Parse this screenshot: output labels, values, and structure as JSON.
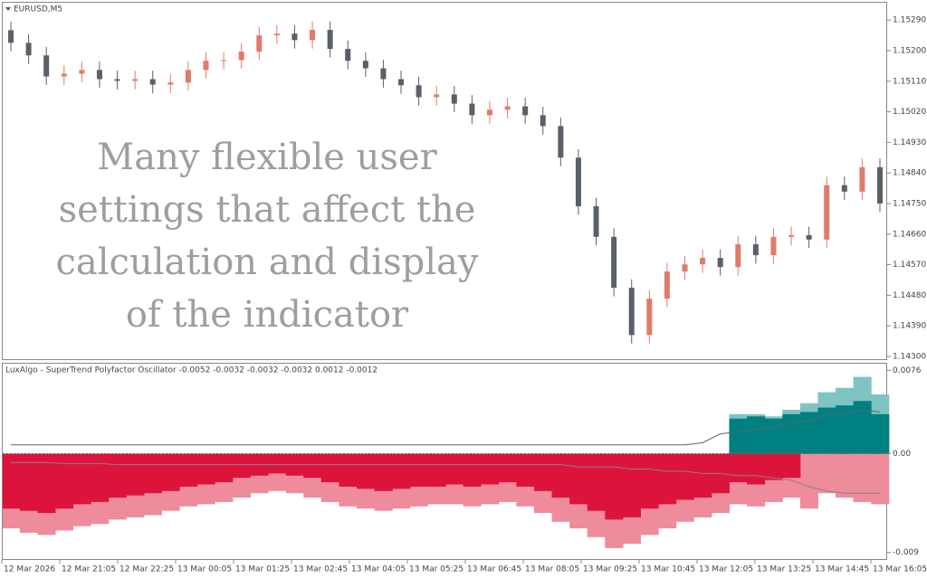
{
  "chart_data": [
    {
      "type": "candlestick",
      "title": "EURUSD,M5",
      "annotations": [
        "Many flexible user",
        "settings that affect the",
        "calculation and display",
        "of the indicator"
      ],
      "up_color": "#e07b6a",
      "down_color": "#5a6068",
      "ylim": [
        1.14292,
        1.15341
      ],
      "yticks": [
        {
          "value": 1.1529,
          "label": "1.15290"
        },
        {
          "value": 1.152,
          "label": "1.15200"
        },
        {
          "value": 1.1511,
          "label": "1.15110"
        },
        {
          "value": 1.1502,
          "label": "1.15020"
        },
        {
          "value": 1.1493,
          "label": "1.14930"
        },
        {
          "value": 1.1484,
          "label": "1.14840"
        },
        {
          "value": 1.1475,
          "label": "1.14750"
        },
        {
          "value": 1.1466,
          "label": "1.14660"
        },
        {
          "value": 1.1457,
          "label": "1.14570"
        },
        {
          "value": 1.1448,
          "label": "1.14480"
        },
        {
          "value": 1.1439,
          "label": "1.14390"
        },
        {
          "value": 1.143,
          "label": "1.14300"
        }
      ],
      "open": [
        1.1526,
        1.15223,
        1.15186,
        1.15124,
        1.15132,
        1.15143,
        1.15116,
        1.15111,
        1.15116,
        1.151,
        1.15106,
        1.15143,
        1.1517,
        1.15172,
        1.15197,
        1.15245,
        1.1525,
        1.15231,
        1.15261,
        1.15205,
        1.1517,
        1.15148,
        1.15116,
        1.15098,
        1.15063,
        1.15071,
        1.15044,
        1.1501,
        1.15026,
        1.15036,
        1.1501,
        1.14978,
        1.14885,
        1.14742,
        1.14652,
        1.14502,
        1.14363,
        1.1447,
        1.1455,
        1.14571,
        1.1459,
        1.14563,
        1.1463,
        1.14598,
        1.14652,
        1.14657,
        1.14644,
        1.14804,
        1.14785,
        1.14857
      ],
      "high": [
        1.15285,
        1.15248,
        1.15211,
        1.15157,
        1.15168,
        1.15168,
        1.15141,
        1.15141,
        1.15141,
        1.15131,
        1.15168,
        1.15195,
        1.15195,
        1.15222,
        1.1527,
        1.15275,
        1.15275,
        1.15286,
        1.15286,
        1.1523,
        1.15195,
        1.15173,
        1.15141,
        1.15123,
        1.15096,
        1.15096,
        1.15069,
        1.15051,
        1.15061,
        1.15061,
        1.15035,
        1.15003,
        1.1491,
        1.14767,
        1.14677,
        1.14527,
        1.14495,
        1.14575,
        1.14596,
        1.14615,
        1.14615,
        1.14655,
        1.14655,
        1.14677,
        1.14682,
        1.14682,
        1.14829,
        1.14829,
        1.14882,
        1.14882
      ],
      "low": [
        1.15198,
        1.15161,
        1.15099,
        1.15099,
        1.15107,
        1.15091,
        1.15086,
        1.15086,
        1.15075,
        1.15075,
        1.15081,
        1.15118,
        1.15145,
        1.15147,
        1.15172,
        1.1522,
        1.15206,
        1.15206,
        1.1518,
        1.15145,
        1.15123,
        1.15091,
        1.15073,
        1.15038,
        1.15038,
        1.15019,
        1.14985,
        1.14985,
        1.15001,
        1.14985,
        1.14953,
        1.1486,
        1.14717,
        1.14627,
        1.14477,
        1.14338,
        1.14338,
        1.14445,
        1.14525,
        1.14546,
        1.14538,
        1.14538,
        1.14573,
        1.14573,
        1.14627,
        1.14619,
        1.14619,
        1.1476,
        1.1476,
        1.14725
      ],
      "close": [
        1.15223,
        1.15186,
        1.15124,
        1.15132,
        1.15143,
        1.15116,
        1.15111,
        1.15116,
        1.151,
        1.15106,
        1.15143,
        1.1517,
        1.15172,
        1.15197,
        1.15245,
        1.1525,
        1.15231,
        1.15261,
        1.15205,
        1.1517,
        1.15148,
        1.15116,
        1.15098,
        1.15063,
        1.15071,
        1.15044,
        1.1501,
        1.15026,
        1.15036,
        1.1501,
        1.14978,
        1.14885,
        1.14742,
        1.14652,
        1.14502,
        1.14363,
        1.1447,
        1.1455,
        1.14571,
        1.1459,
        1.14563,
        1.1463,
        1.14598,
        1.14652,
        1.14657,
        1.14644,
        1.14804,
        1.14785,
        1.14857,
        1.1475
      ]
    },
    {
      "type": "bar",
      "title": "LuxAlgo - SuperTrend Polyfactor Oscillator -0.0052 -0.0032 -0.0032 -0.0032 0.0012 -0.0012",
      "ylim": [
        -0.0096,
        0.0082
      ],
      "yticks": [
        0.0076,
        {
          "value": 0,
          "label": "0.00"
        },
        -0.009
      ],
      "series": [
        {
          "color": "#ee8c9c",
          "values": [
            -0.0068,
            -0.0072,
            -0.0074,
            -0.007,
            -0.0066,
            -0.0064,
            -0.006,
            -0.0058,
            -0.0056,
            -0.0052,
            -0.0048,
            -0.0046,
            -0.0044,
            -0.004,
            -0.0036,
            -0.0034,
            -0.0036,
            -0.004,
            -0.0044,
            -0.0048,
            -0.005,
            -0.0052,
            -0.005,
            -0.0048,
            -0.0046,
            -0.0046,
            -0.0048,
            -0.0046,
            -0.0044,
            -0.0048,
            -0.0054,
            -0.0062,
            -0.0068,
            -0.0076,
            -0.0086,
            -0.0082,
            -0.0074,
            -0.0068,
            -0.0062,
            -0.0058,
            -0.0054,
            -0.0046,
            -0.0048,
            -0.0044,
            -0.004,
            -0.005,
            -0.0036,
            -0.004,
            -0.0044,
            -0.0046
          ]
        },
        {
          "color": "#dc143c",
          "values": [
            -0.005,
            -0.0052,
            -0.0054,
            -0.005,
            -0.0046,
            -0.0044,
            -0.004,
            -0.0038,
            -0.0036,
            -0.0034,
            -0.003,
            -0.0028,
            -0.0026,
            -0.0022,
            -0.002,
            -0.0018,
            -0.002,
            -0.0022,
            -0.0026,
            -0.003,
            -0.0032,
            -0.0034,
            -0.0032,
            -0.003,
            -0.003,
            -0.0028,
            -0.003,
            -0.0028,
            -0.0026,
            -0.003,
            -0.0034,
            -0.004,
            -0.0046,
            -0.0052,
            -0.006,
            -0.0058,
            -0.005,
            -0.0046,
            -0.0042,
            -0.004,
            -0.0036,
            -0.0026,
            -0.0028,
            -0.0024,
            -0.0022,
            null,
            null,
            null,
            null,
            null
          ]
        },
        {
          "color": "#7fc3c3",
          "values": [
            null,
            null,
            null,
            null,
            null,
            null,
            null,
            null,
            null,
            null,
            null,
            null,
            null,
            null,
            null,
            null,
            null,
            null,
            null,
            null,
            null,
            null,
            null,
            null,
            null,
            null,
            null,
            null,
            null,
            null,
            null,
            null,
            null,
            null,
            null,
            null,
            null,
            null,
            null,
            null,
            null,
            0.0036,
            0.0036,
            0.0034,
            0.004,
            0.0046,
            0.0056,
            0.006,
            0.007,
            0.0054
          ]
        },
        {
          "color": "#008080",
          "values": [
            null,
            null,
            null,
            null,
            null,
            null,
            null,
            null,
            null,
            null,
            null,
            null,
            null,
            null,
            null,
            null,
            null,
            null,
            null,
            null,
            null,
            null,
            null,
            null,
            null,
            null,
            null,
            null,
            null,
            null,
            null,
            null,
            null,
            null,
            null,
            null,
            null,
            null,
            null,
            null,
            null,
            0.0032,
            0.0034,
            0.0032,
            0.0036,
            0.0038,
            0.0042,
            0.0044,
            0.0048,
            0.0036
          ]
        }
      ],
      "lines": [
        {
          "color": "#5c6470",
          "values": [
            0.0008,
            0.0008,
            0.0008,
            0.0008,
            0.0008,
            0.0008,
            0.0008,
            0.0008,
            0.0008,
            0.0008,
            0.0008,
            0.0008,
            0.0008,
            0.0008,
            0.0008,
            0.0008,
            0.0008,
            0.0008,
            0.0008,
            0.0008,
            0.0008,
            0.0008,
            0.0008,
            0.0008,
            0.0008,
            0.0008,
            0.0008,
            0.0008,
            0.0008,
            0.0008,
            0.0008,
            0.0008,
            0.0008,
            0.0008,
            0.0008,
            0.0008,
            0.0008,
            0.0008,
            0.0008,
            0.001,
            0.0018,
            0.002,
            0.0022,
            0.0024,
            0.0028,
            0.003,
            0.0036,
            0.0036,
            0.004,
            0.0038
          ]
        },
        {
          "color": "#8a7f8a",
          "values": [
            -0.0008,
            -0.0008,
            -0.0008,
            -0.0009,
            -0.0009,
            -0.0009,
            -0.001,
            -0.001,
            -0.001,
            -0.001,
            -0.001,
            -0.001,
            -0.001,
            -0.001,
            -0.001,
            -0.001,
            -0.001,
            -0.001,
            -0.001,
            -0.001,
            -0.001,
            -0.001,
            -0.001,
            -0.001,
            -0.001,
            -0.001,
            -0.001,
            -0.001,
            -0.001,
            -0.001,
            -0.001,
            -0.001,
            -0.0012,
            -0.0012,
            -0.0012,
            -0.0014,
            -0.0014,
            -0.0016,
            -0.0016,
            -0.0018,
            -0.0018,
            -0.002,
            -0.002,
            -0.0022,
            -0.0024,
            -0.003,
            -0.0034,
            -0.0036,
            -0.0036,
            -0.0036
          ]
        }
      ]
    }
  ],
  "time_axis": [
    "12 Mar 2026",
    "12 Mar 21:05",
    "12 Mar 22:25",
    "13 Mar 00:05",
    "13 Mar 01:25",
    "13 Mar 02:45",
    "13 Mar 04:05",
    "13 Mar 05:25",
    "13 Mar 06:45",
    "13 Mar 08:05",
    "13 Mar 09:25",
    "13 Mar 10:45",
    "13 Mar 12:05",
    "13 Mar 13:25",
    "13 Mar 14:45",
    "13 Mar 16:05"
  ]
}
